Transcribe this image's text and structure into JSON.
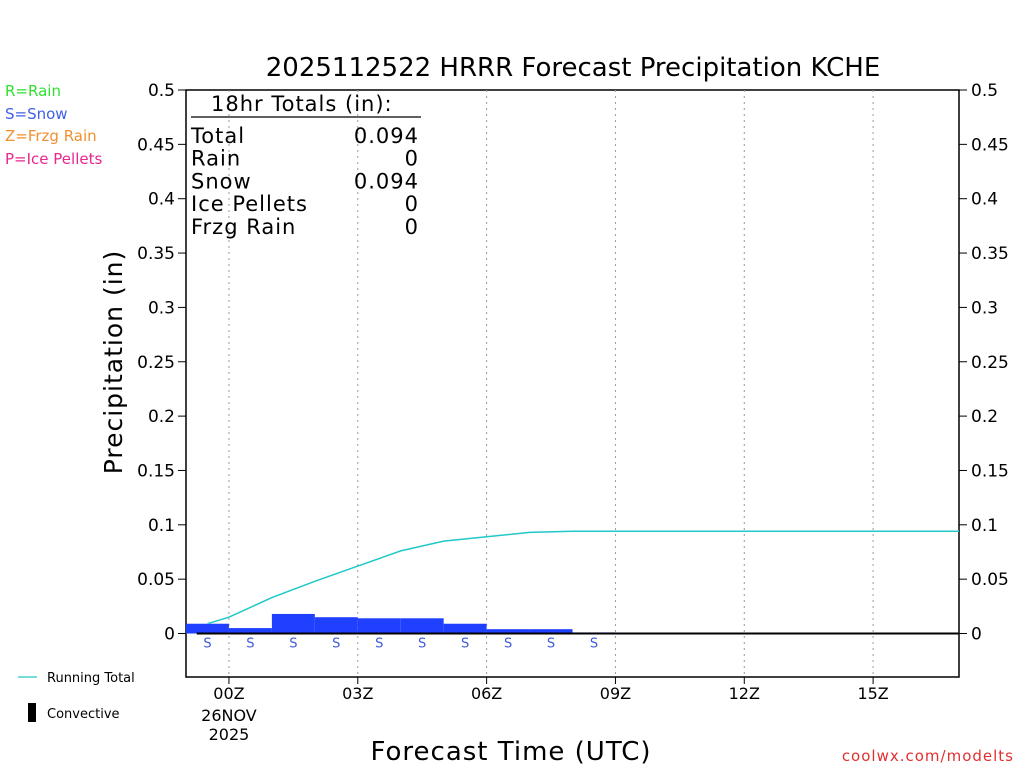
{
  "chart_data": {
    "type": "bar",
    "title": "2025112522 HRRR Forecast Precipitation KCHE",
    "xlabel": "Forecast Time (UTC)",
    "ylabel": "Precipitation (in)",
    "ylim": [
      -0.04,
      0.5
    ],
    "yticks": [
      0,
      0.05,
      0.1,
      0.15,
      0.2,
      0.25,
      0.3,
      0.35,
      0.4,
      0.45,
      0.5
    ],
    "xlim_hours": [
      -1.0,
      17.0
    ],
    "xticks": [
      {
        "hour": 0,
        "label": "00Z",
        "sub": [
          "26NOV",
          "2025"
        ]
      },
      {
        "hour": 3,
        "label": "03Z",
        "sub": []
      },
      {
        "hour": 6,
        "label": "06Z",
        "sub": []
      },
      {
        "hour": 9,
        "label": "09Z",
        "sub": []
      },
      {
        "hour": 12,
        "label": "12Z",
        "sub": []
      },
      {
        "hour": 15,
        "label": "15Z",
        "sub": []
      }
    ],
    "grid": true,
    "bars": [
      {
        "hour": -1.0,
        "value": 0.009,
        "type": "S"
      },
      {
        "hour": 0.0,
        "value": 0.005,
        "type": "S"
      },
      {
        "hour": 1.0,
        "value": 0.018,
        "type": "S"
      },
      {
        "hour": 2.0,
        "value": 0.015,
        "type": "S"
      },
      {
        "hour": 3.0,
        "value": 0.014,
        "type": "S"
      },
      {
        "hour": 4.0,
        "value": 0.014,
        "type": "S"
      },
      {
        "hour": 5.0,
        "value": 0.009,
        "type": "S"
      },
      {
        "hour": 6.0,
        "value": 0.004,
        "type": "S"
      },
      {
        "hour": 7.0,
        "value": 0.004,
        "type": "S"
      },
      {
        "hour": 8.0,
        "value": 0.001,
        "type": "S"
      },
      {
        "hour": 9.0,
        "value": 0.0,
        "type": ""
      },
      {
        "hour": 10.0,
        "value": 0.0,
        "type": ""
      },
      {
        "hour": 11.0,
        "value": 0.0,
        "type": ""
      },
      {
        "hour": 12.0,
        "value": 0.0,
        "type": ""
      },
      {
        "hour": 13.0,
        "value": 0.0,
        "type": ""
      },
      {
        "hour": 14.0,
        "value": 0.0,
        "type": ""
      },
      {
        "hour": 15.0,
        "value": 0.0,
        "type": ""
      },
      {
        "hour": 16.0,
        "value": 0.0,
        "type": ""
      }
    ],
    "series": [
      {
        "name": "Running Total",
        "color": "#20c8c8",
        "points": [
          [
            -0.5,
            0.009
          ],
          [
            0.0,
            0.015
          ],
          [
            1.0,
            0.033
          ],
          [
            2.0,
            0.048
          ],
          [
            3.0,
            0.062
          ],
          [
            4.0,
            0.076
          ],
          [
            5.0,
            0.085
          ],
          [
            6.0,
            0.089
          ],
          [
            7.0,
            0.093
          ],
          [
            8.0,
            0.094
          ],
          [
            9.0,
            0.094
          ],
          [
            10.0,
            0.094
          ],
          [
            11.0,
            0.094
          ],
          [
            12.0,
            0.094
          ],
          [
            13.0,
            0.094
          ],
          [
            14.0,
            0.094
          ],
          [
            15.0,
            0.094
          ],
          [
            16.0,
            0.094
          ],
          [
            17.0,
            0.094
          ]
        ]
      }
    ],
    "bar_color": "#2040ff",
    "type_letter_color": "#3c5adc"
  },
  "totals_box": {
    "heading": "18hr Totals (in):",
    "rows": [
      {
        "label": "Total",
        "value": "0.094"
      },
      {
        "label": "Rain",
        "value": "0"
      },
      {
        "label": "Snow",
        "value": "0.094"
      },
      {
        "label": "Ice Pellets",
        "value": "0"
      },
      {
        "label": "Frzg Rain",
        "value": "0"
      }
    ]
  },
  "type_legend": [
    {
      "text": "R=Rain",
      "color": "#30e030"
    },
    {
      "text": "S=Snow",
      "color": "#4060e8"
    },
    {
      "text": "Z=Frzg Rain",
      "color": "#f09030"
    },
    {
      "text": "P=Ice Pellets",
      "color": "#e82890"
    }
  ],
  "bottom_legend": {
    "running_total": "Running Total",
    "convective": "Convective"
  },
  "credit": "coolwx.com/modelts"
}
